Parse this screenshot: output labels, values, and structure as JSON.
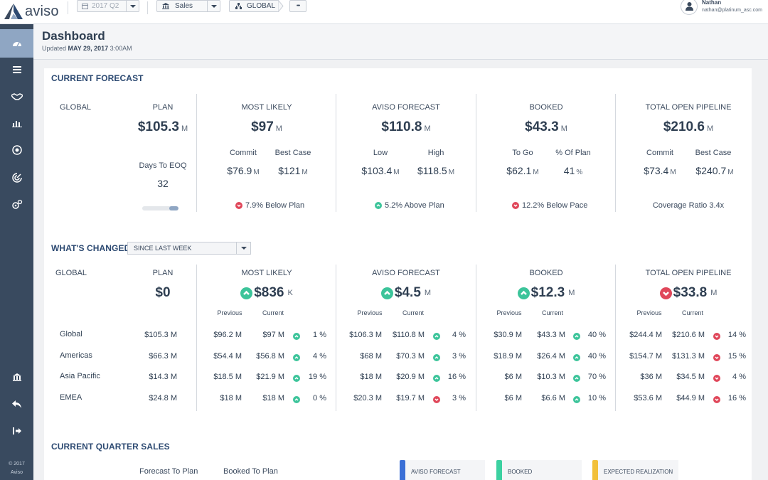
{
  "app": {
    "brand": "aviso"
  },
  "topbar": {
    "quarter": "2017 Q2",
    "sales_selector": "Sales",
    "region": "GLOBAL",
    "more": "•••",
    "user_name": "Nathan",
    "user_email": "nathan@platinum_asc.com"
  },
  "sidebar": {
    "items": [
      "dashboard-icon",
      "list-icon",
      "handshake-icon",
      "bar-chart-icon",
      "target-chart-icon",
      "radar-icon",
      "settings-icon"
    ],
    "bottom_items": [
      "bank-icon",
      "reply-icon",
      "logout-icon"
    ],
    "footer_year": "© 2017",
    "footer_brand": "Aviso"
  },
  "header": {
    "title": "Dashboard",
    "updated_prefix": "Updated",
    "updated_date": "MAY 29, 2017",
    "updated_time": "3:00AM"
  },
  "current_forecast": {
    "title": "CURRENT FORECAST",
    "scope": "GLOBAL",
    "plan": {
      "label": "PLAN",
      "value": "$105.3",
      "unit": "M",
      "days_label": "Days To EOQ",
      "days_value": "32",
      "days_progress_pct": 25
    },
    "most_likely": {
      "label": "MOST LIKELY",
      "value": "$97",
      "unit": "M",
      "sub1_label": "Commit",
      "sub1_value": "$76.9",
      "sub1_unit": "M",
      "sub2_label": "Best Case",
      "sub2_value": "$121",
      "sub2_unit": "M",
      "note": "7.9% Below Plan",
      "direction": "down"
    },
    "aviso_forecast": {
      "label": "AVISO FORECAST",
      "value": "$110.8",
      "unit": "M",
      "sub1_label": "Low",
      "sub1_value": "$103.4",
      "sub1_unit": "M",
      "sub2_label": "High",
      "sub2_value": "$118.5",
      "sub2_unit": "M",
      "note": "5.2% Above Plan",
      "direction": "up"
    },
    "booked": {
      "label": "BOOKED",
      "value": "$43.3",
      "unit": "M",
      "sub1_label": "To Go",
      "sub1_value": "$62.1",
      "sub1_unit": "M",
      "sub2_label": "% Of Plan",
      "sub2_value": "41",
      "sub2_unit": "%",
      "note": "12.2% Below Pace",
      "direction": "down"
    },
    "pipeline": {
      "label": "TOTAL OPEN PIPELINE",
      "value": "$210.6",
      "unit": "M",
      "sub1_label": "Commit",
      "sub1_value": "$73.4",
      "sub1_unit": "M",
      "sub2_label": "Best Case",
      "sub2_value": "$240.7",
      "sub2_unit": "M",
      "note": "Coverage Ratio 3.4x"
    }
  },
  "whats_changed": {
    "title": "WHAT'S CHANGED",
    "period": "SINCE LAST WEEK",
    "scope": "GLOBAL",
    "previous_label": "Previous",
    "current_label": "Current",
    "plan": {
      "label": "PLAN",
      "value": "$0"
    },
    "most_likely": {
      "label": "MOST LIKELY",
      "value": "$836",
      "unit": "K",
      "direction": "up"
    },
    "aviso_forecast": {
      "label": "AVISO FORECAST",
      "value": "$4.5",
      "unit": "M",
      "direction": "up"
    },
    "booked": {
      "label": "BOOKED",
      "value": "$12.3",
      "unit": "M",
      "direction": "up"
    },
    "pipeline": {
      "label": "TOTAL OPEN PIPELINE",
      "value": "$33.8",
      "unit": "M",
      "direction": "down"
    },
    "rows": [
      {
        "name": "Global",
        "plan": "$105.3 M",
        "ml": [
          "$96.2 M",
          "$97 M",
          "up",
          "1 %"
        ],
        "af": [
          "$106.3 M",
          "$110.8 M",
          "up",
          "4 %"
        ],
        "bk": [
          "$30.9 M",
          "$43.3 M",
          "up",
          "40 %"
        ],
        "pp": [
          "$244.4 M",
          "$210.6 M",
          "down",
          "14 %"
        ]
      },
      {
        "name": "Americas",
        "plan": "$66.3 M",
        "ml": [
          "$54.4 M",
          "$56.8 M",
          "up",
          "4 %"
        ],
        "af": [
          "$68 M",
          "$70.3 M",
          "up",
          "3 %"
        ],
        "bk": [
          "$18.9 M",
          "$26.4 M",
          "up",
          "40 %"
        ],
        "pp": [
          "$154.7 M",
          "$131.3 M",
          "down",
          "15 %"
        ]
      },
      {
        "name": "Asia Pacific",
        "plan": "$14.3 M",
        "ml": [
          "$18.5 M",
          "$21.9 M",
          "up",
          "19 %"
        ],
        "af": [
          "$18 M",
          "$20.9 M",
          "up",
          "16 %"
        ],
        "bk": [
          "$6 M",
          "$10.3 M",
          "up",
          "70 %"
        ],
        "pp": [
          "$36 M",
          "$34.5 M",
          "down",
          "4 %"
        ]
      },
      {
        "name": "EMEA",
        "plan": "$24.8 M",
        "ml": [
          "$18 M",
          "$18 M",
          "up",
          "0 %"
        ],
        "af": [
          "$20.3 M",
          "$19.7 M",
          "down",
          "3 %"
        ],
        "bk": [
          "$6 M",
          "$6.6 M",
          "up",
          "10 %"
        ],
        "pp": [
          "$53.6 M",
          "$44.9 M",
          "down",
          "16 %"
        ]
      }
    ]
  },
  "current_quarter": {
    "title": "CURRENT QUARTER SALES",
    "col1": "Forecast To Plan",
    "col2": "Booked To Plan",
    "legend": [
      {
        "label": "AVISO FORECAST",
        "color": "#3a6fd6"
      },
      {
        "label": "BOOKED",
        "color": "#3cd1a1"
      },
      {
        "label": "EXPECTED REALIZATION",
        "color": "#f2c03a"
      }
    ]
  },
  "colors": {
    "up": "#3cc49a",
    "down": "#e0475a",
    "sidebar": "#394a5f",
    "accent": "#2d4a72"
  }
}
